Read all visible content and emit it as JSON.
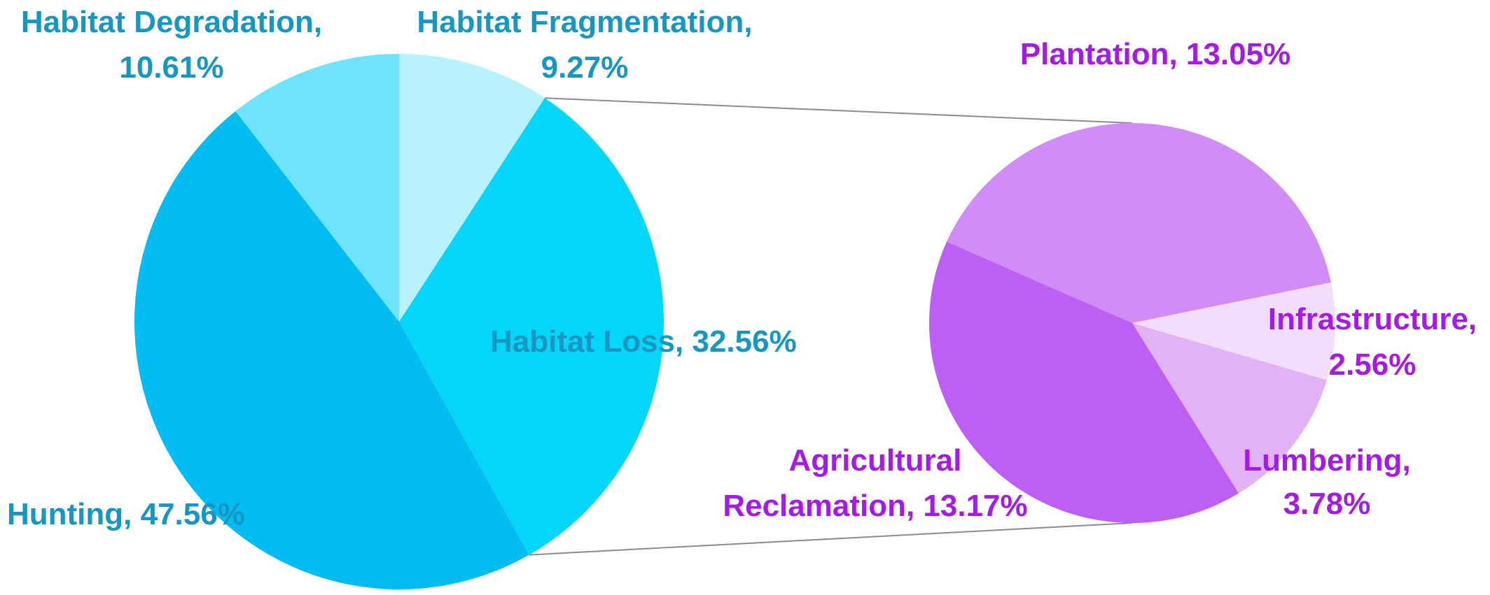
{
  "chart_data": [
    {
      "type": "pie",
      "slices": [
        {
          "label": "Habitat Fragmentation,",
          "value_label": "9.27%",
          "value": 9.27,
          "color": "#B8F2FC"
        },
        {
          "label": "Habitat Loss, 32.56%",
          "value_label": "",
          "value": 32.56,
          "color": "#03D6F8"
        },
        {
          "label": "Hunting, 47.56%",
          "value_label": "",
          "value": 47.56,
          "color": "#03BDF2"
        },
        {
          "label": "Habitat Degradation,",
          "value_label": "10.61%",
          "value": 10.61,
          "color": "#6EE3FB"
        }
      ]
    },
    {
      "type": "pie",
      "exploded_from": "Habitat Loss, 32.56%",
      "slices": [
        {
          "label": "Plantation, 13.05%",
          "value_label": "",
          "value": 13.05,
          "color": "#D28CF7"
        },
        {
          "label": "Infrastructure,",
          "value_label": "2.56%",
          "value": 2.56,
          "color": "#F3DDFC"
        },
        {
          "label": "Lumbering,",
          "value_label": "3.78%",
          "value": 3.78,
          "color": "#E2B2F9"
        },
        {
          "label": "Agricultural",
          "value_label": "Reclamation, 13.17%",
          "value": 13.17,
          "color": "#BD5FF5"
        }
      ]
    }
  ]
}
